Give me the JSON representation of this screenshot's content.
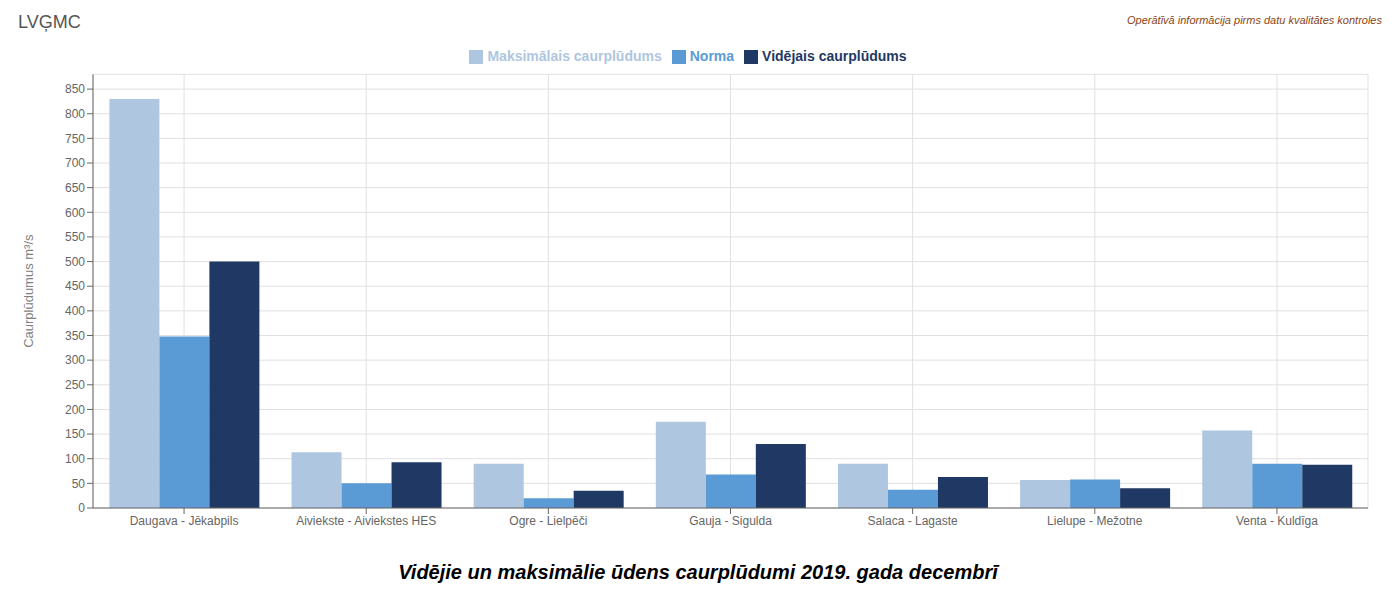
{
  "chart_data": {
    "type": "bar",
    "title": "Vidējie un maksimālie ūdens caurplūdumi 2019. gada decembrī",
    "ylabel": "Caurplūdumus  m³/s",
    "annotations": [
      "Operātīvā informācija pirms datu kvalitātes kontroles",
      "LVĢMC"
    ],
    "categories": [
      "Daugava - Jēkabpils",
      "Aiviekste - Aiviekstes HES",
      "Ogre - Lielpēči",
      "Gauja - Sigulda",
      "Salaca - Lagaste",
      "Lielupe - Mežotne",
      "Venta - Kuldīga"
    ],
    "series": [
      {
        "name": "Maksimālais caurplūdums",
        "color": "#aec6e0",
        "values": [
          830,
          113,
          90,
          175,
          90,
          57,
          157
        ]
      },
      {
        "name": "Norma",
        "color": "#5b9bd5",
        "values": [
          348,
          50,
          20,
          68,
          37,
          58,
          90
        ]
      },
      {
        "name": "Vidējais caurplūdums",
        "color": "#1f3864",
        "values": [
          500,
          93,
          35,
          130,
          63,
          40,
          88
        ]
      }
    ],
    "ylim": [
      0,
      880
    ],
    "yticks": [
      0,
      50,
      100,
      150,
      200,
      250,
      300,
      350,
      400,
      450,
      500,
      550,
      600,
      650,
      700,
      750,
      800,
      850
    ],
    "grid": true,
    "legend": "top"
  }
}
